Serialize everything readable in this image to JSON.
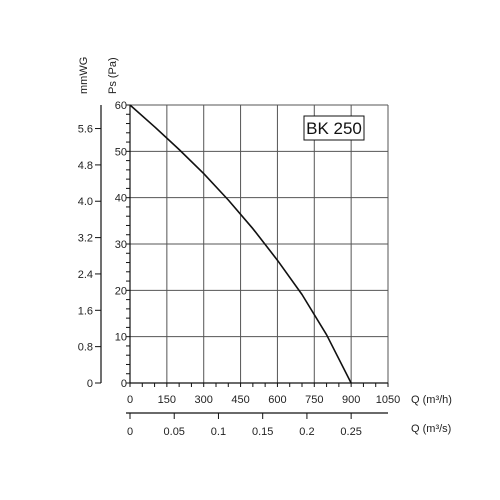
{
  "chart_data": {
    "type": "line",
    "model_label": "BK 250",
    "y_pa": {
      "label": "Ps (Pa)",
      "ticks": [
        0,
        10,
        20,
        30,
        40,
        50,
        60
      ],
      "range": [
        0,
        60
      ]
    },
    "y_mmwg": {
      "label": "mmWG",
      "ticks": [
        "0",
        "0.8",
        "1.6",
        "2.4",
        "3.2",
        "4.0",
        "4.8",
        "5.6"
      ],
      "tick_pa": [
        0,
        7.85,
        15.69,
        23.54,
        31.38,
        39.23,
        47.07,
        54.92
      ]
    },
    "x_m3h": {
      "label": "Q (m³/h)",
      "ticks": [
        0,
        150,
        300,
        450,
        600,
        750,
        900,
        1050
      ],
      "range": [
        0,
        1050
      ]
    },
    "x_m3s": {
      "label": "Q (m³/s)",
      "ticks": [
        "0",
        "0.05",
        "0.1",
        "0.15",
        "0.2",
        "0.25"
      ],
      "tick_m3h": [
        0,
        180,
        360,
        540,
        720,
        900
      ]
    },
    "grid": true,
    "series": [
      {
        "color": "#111111",
        "x": [
          0,
          100,
          200,
          300,
          400,
          500,
          600,
          700,
          800,
          900
        ],
        "y": [
          60,
          55.3,
          50.4,
          45.2,
          39.5,
          33.3,
          26.5,
          19.1,
          10.4,
          0
        ]
      }
    ]
  }
}
